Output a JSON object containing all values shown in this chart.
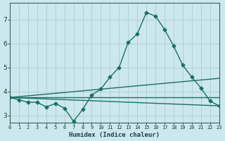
{
  "xlabel": "Humidex (Indice chaleur)",
  "bg_color": "#cce8ee",
  "grid_color": "#b0cccc",
  "line_color": "#1a7060",
  "xlim": [
    0,
    23
  ],
  "ylim": [
    2.7,
    7.7
  ],
  "yticks": [
    3,
    4,
    5,
    6,
    7
  ],
  "xticks": [
    0,
    1,
    2,
    3,
    4,
    5,
    6,
    7,
    8,
    9,
    10,
    11,
    12,
    13,
    14,
    15,
    16,
    17,
    18,
    19,
    20,
    21,
    22,
    23
  ],
  "series": [
    {
      "x": [
        0,
        1,
        2,
        3,
        4,
        5,
        6,
        7,
        8,
        9,
        10,
        11,
        12,
        13,
        14,
        15,
        16,
        17,
        18,
        19,
        20,
        21,
        22,
        23
      ],
      "y": [
        3.75,
        3.65,
        3.55,
        3.55,
        3.35,
        3.5,
        3.3,
        2.75,
        3.25,
        3.85,
        4.1,
        4.6,
        5.0,
        6.05,
        6.4,
        7.3,
        7.15,
        6.6,
        5.9,
        5.1,
        4.6,
        4.15,
        3.6,
        3.4
      ]
    },
    {
      "x": [
        0,
        23
      ],
      "y": [
        3.75,
        3.4
      ]
    },
    {
      "x": [
        0,
        23
      ],
      "y": [
        3.75,
        4.55
      ]
    },
    {
      "x": [
        0,
        23
      ],
      "y": [
        3.75,
        3.75
      ]
    }
  ],
  "marker_x": [
    0,
    1,
    2,
    3,
    4,
    5,
    6,
    7,
    8,
    9,
    10,
    11,
    12,
    13,
    14,
    15,
    16,
    17,
    18,
    19,
    20,
    21,
    22,
    23
  ],
  "marker_y": [
    3.75,
    3.65,
    3.55,
    3.55,
    3.35,
    3.5,
    3.3,
    2.75,
    3.25,
    3.85,
    4.1,
    4.6,
    5.0,
    6.05,
    6.4,
    7.3,
    7.15,
    6.6,
    5.9,
    5.1,
    4.6,
    4.15,
    3.6,
    3.4
  ]
}
